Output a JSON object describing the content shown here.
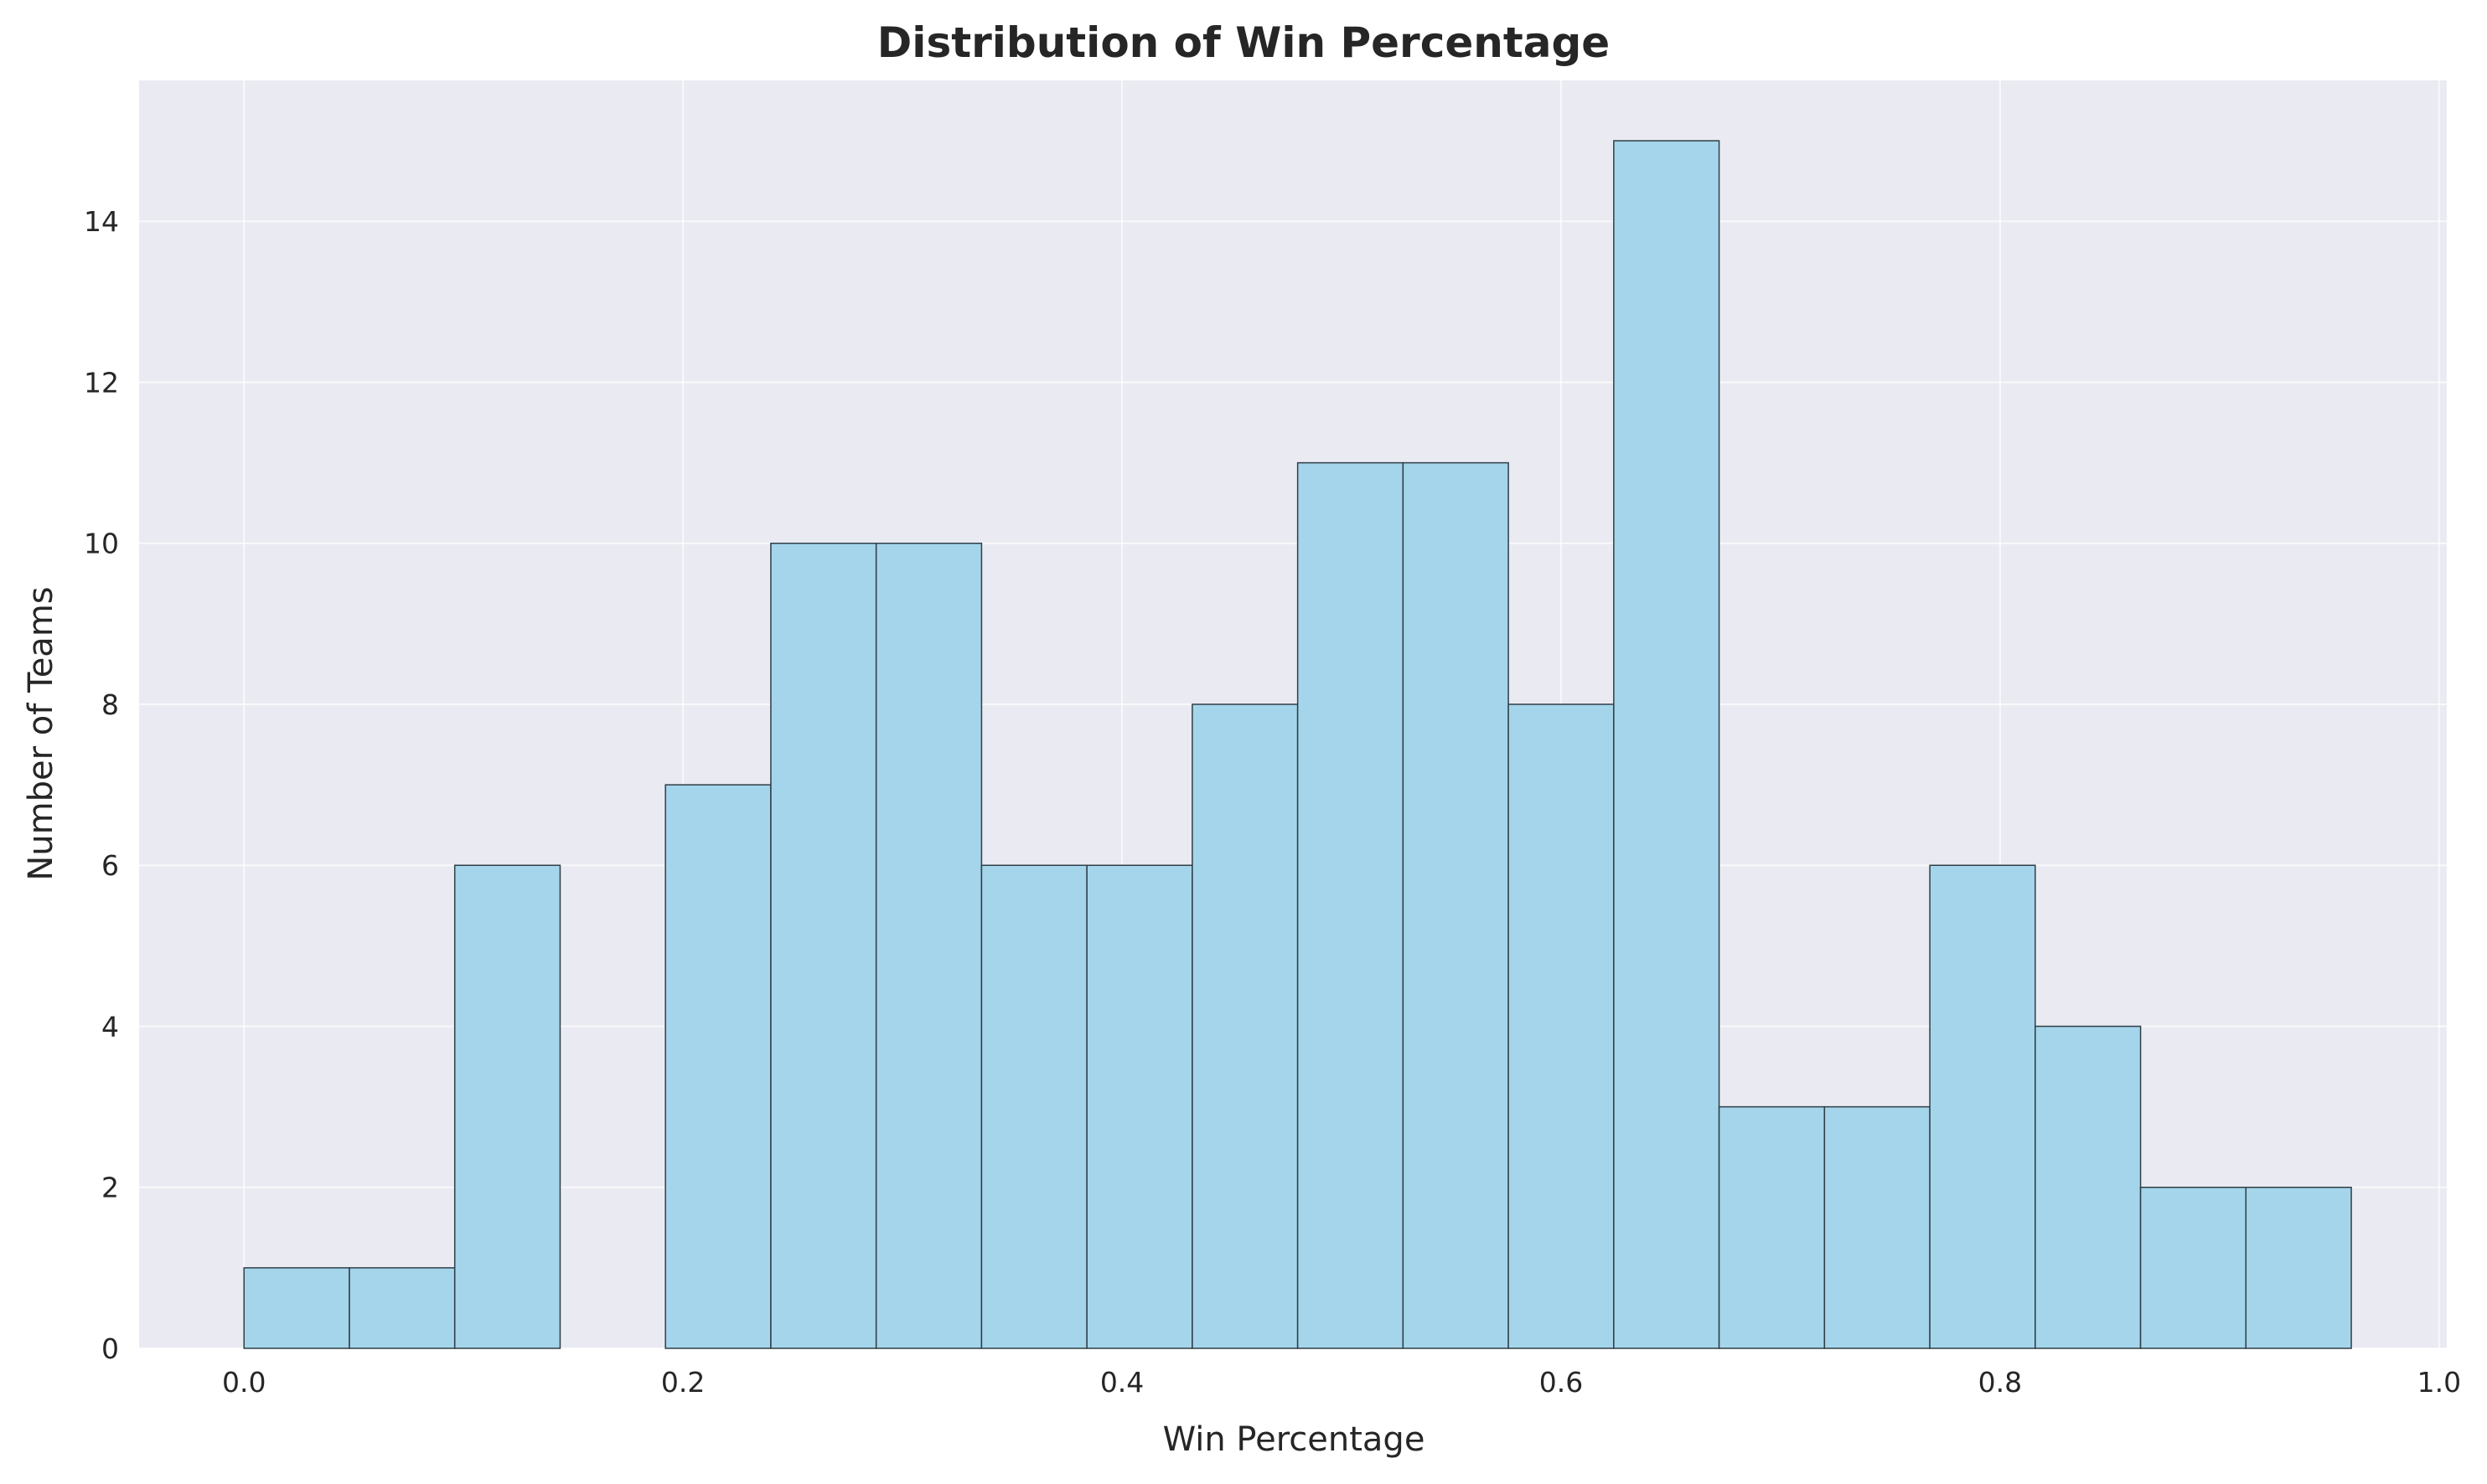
{
  "chart_data": {
    "type": "bar",
    "title": "Distribution of Win Percentage",
    "xlabel": "Win Percentage",
    "ylabel": "Number of Teams",
    "xlim": [
      -0.0478,
      1.0035
    ],
    "ylim": [
      0,
      15.75
    ],
    "xticks": [
      0.0,
      0.2,
      0.4,
      0.6,
      0.8,
      1.0
    ],
    "xtick_labels": [
      "0.0",
      "0.2",
      "0.4",
      "0.6",
      "0.8",
      "1.0"
    ],
    "yticks": [
      0,
      2,
      4,
      6,
      8,
      10,
      12,
      14
    ],
    "ytick_labels": [
      "0",
      "2",
      "4",
      "6",
      "8",
      "10",
      "12",
      "14"
    ],
    "bin_edges": [
      0.0,
      0.048,
      0.096,
      0.144,
      0.192,
      0.24,
      0.288,
      0.336,
      0.384,
      0.432,
      0.48,
      0.528,
      0.576,
      0.624,
      0.672,
      0.72,
      0.768,
      0.816,
      0.864,
      0.912,
      0.96
    ],
    "values": [
      1,
      1,
      6,
      0,
      7,
      10,
      10,
      6,
      6,
      8,
      11,
      11,
      8,
      15,
      3,
      3,
      6,
      4,
      2,
      2
    ],
    "bar_color": "#a5d5eb",
    "edge_color": "#2f3e46",
    "background_color": "#eaeaf2",
    "grid_color": "#ffffff",
    "grid": true
  }
}
